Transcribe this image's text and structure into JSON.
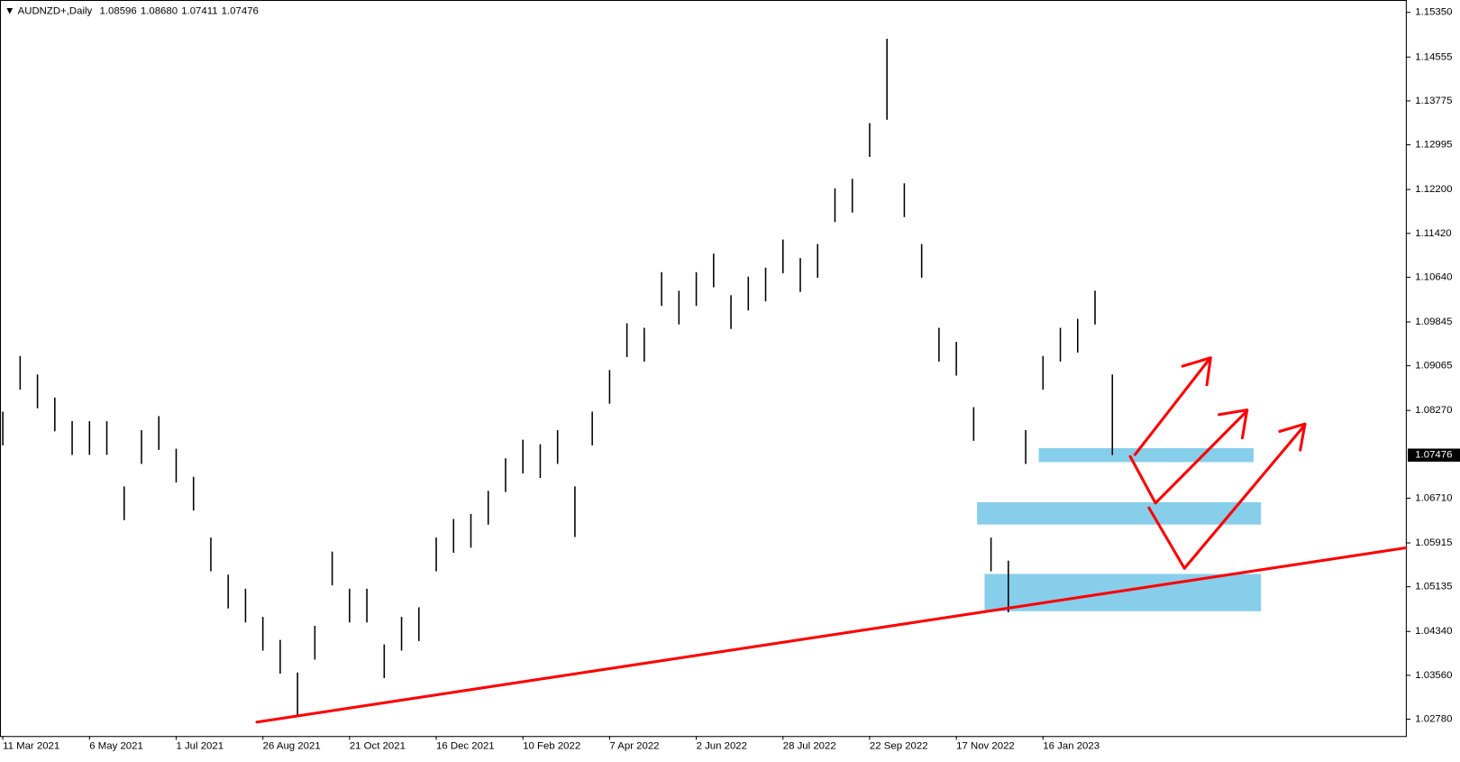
{
  "chart_data": {
    "type": "ohlc",
    "symbol": "AUDNZD+,Daily",
    "ohlc_header": [
      "1.08596",
      "1.08680",
      "1.07411",
      "1.07476"
    ],
    "categories": [
      "11 Mar 2021",
      null,
      null,
      null,
      null,
      "6 May 2021",
      null,
      null,
      null,
      null,
      "1 Jul 2021",
      null,
      null,
      null,
      null,
      "26 Aug 2021",
      null,
      null,
      null,
      null,
      "21 Oct 2021",
      null,
      null,
      null,
      null,
      "16 Dec 2021",
      null,
      null,
      null,
      null,
      "10 Feb 2022",
      null,
      null,
      null,
      null,
      "7 Apr 2022",
      null,
      null,
      null,
      null,
      "2 Jun 2022",
      null,
      null,
      null,
      null,
      "28 Jul 2022",
      null,
      null,
      null,
      null,
      "22 Sep 2022",
      null,
      null,
      null,
      null,
      "17 Nov 2022",
      null,
      null,
      null,
      null,
      "16 Jan 2023",
      null,
      null,
      null,
      null
    ],
    "high": [
      1.0825,
      1.0924,
      1.0891,
      1.085,
      1.0808,
      1.0808,
      1.0808,
      1.0692,
      1.0792,
      1.0817,
      1.0759,
      1.0709,
      1.0601,
      1.0535,
      1.051,
      1.046,
      1.0419,
      1.0361,
      1.0444,
      1.0576,
      1.051,
      1.051,
      1.0411,
      1.046,
      1.0477,
      1.0601,
      1.0634,
      1.0643,
      1.0684,
      1.0742,
      1.0775,
      1.0767,
      1.0792,
      1.0692,
      1.0825,
      1.0899,
      1.0982,
      1.0974,
      1.1073,
      1.104,
      1.1073,
      1.1106,
      1.1032,
      1.1065,
      1.1081,
      1.1131,
      1.1098,
      1.1123,
      1.1222,
      1.1239,
      1.1338,
      1.1488,
      1.1231,
      1.1123,
      1.0974,
      1.0949,
      1.0833,
      1.0601,
      1.056,
      1.0792,
      1.0924,
      1.0974,
      1.099,
      1.104,
      1.0891
    ],
    "low": [
      1.0765,
      1.0864,
      1.0831,
      1.079,
      1.0748,
      1.0748,
      1.0748,
      1.0632,
      1.0732,
      1.0757,
      1.0699,
      1.0649,
      1.0541,
      1.0475,
      1.045,
      1.04,
      1.0359,
      1.0284,
      1.0384,
      1.0516,
      1.045,
      1.045,
      1.0351,
      1.04,
      1.0417,
      1.0541,
      1.0574,
      1.0583,
      1.0624,
      1.0682,
      1.0715,
      1.0707,
      1.0732,
      1.0602,
      1.0765,
      1.0839,
      1.0922,
      1.0914,
      1.1013,
      1.098,
      1.1013,
      1.1046,
      1.0972,
      1.1005,
      1.1021,
      1.1071,
      1.1038,
      1.1063,
      1.1162,
      1.1179,
      1.1278,
      1.1344,
      1.1171,
      1.1063,
      1.0914,
      1.0889,
      1.0773,
      1.0541,
      1.0468,
      1.0732,
      1.0864,
      1.0914,
      1.093,
      1.098,
      1.0748
    ],
    "color": "#000000",
    "ylim": [
      1.0248,
      1.1557
    ],
    "yticks": [
      {
        "value": 1.0278,
        "label": "1.02780"
      },
      {
        "value": 1.0356,
        "label": "1.03560"
      },
      {
        "value": 1.0434,
        "label": "1.04340"
      },
      {
        "value": 1.05135,
        "label": "1.05135"
      },
      {
        "value": 1.05915,
        "label": "1.05915"
      },
      {
        "value": 1.0671,
        "label": "1.06710"
      },
      {
        "value": 1.0827,
        "label": "1.08270"
      },
      {
        "value": 1.09065,
        "label": "1.09065"
      },
      {
        "value": 1.09845,
        "label": "1.09845"
      },
      {
        "value": 1.1064,
        "label": "1.10640"
      },
      {
        "value": 1.1142,
        "label": "1.11420"
      },
      {
        "value": 1.122,
        "label": "1.12200"
      },
      {
        "value": 1.12995,
        "label": "1.12995"
      },
      {
        "value": 1.13775,
        "label": "1.13775"
      },
      {
        "value": 1.14555,
        "label": "1.14555"
      },
      {
        "value": 1.1535,
        "label": "1.15350"
      }
    ],
    "current_price": {
      "value": 1.07476,
      "label": "1.07476"
    }
  }
}
